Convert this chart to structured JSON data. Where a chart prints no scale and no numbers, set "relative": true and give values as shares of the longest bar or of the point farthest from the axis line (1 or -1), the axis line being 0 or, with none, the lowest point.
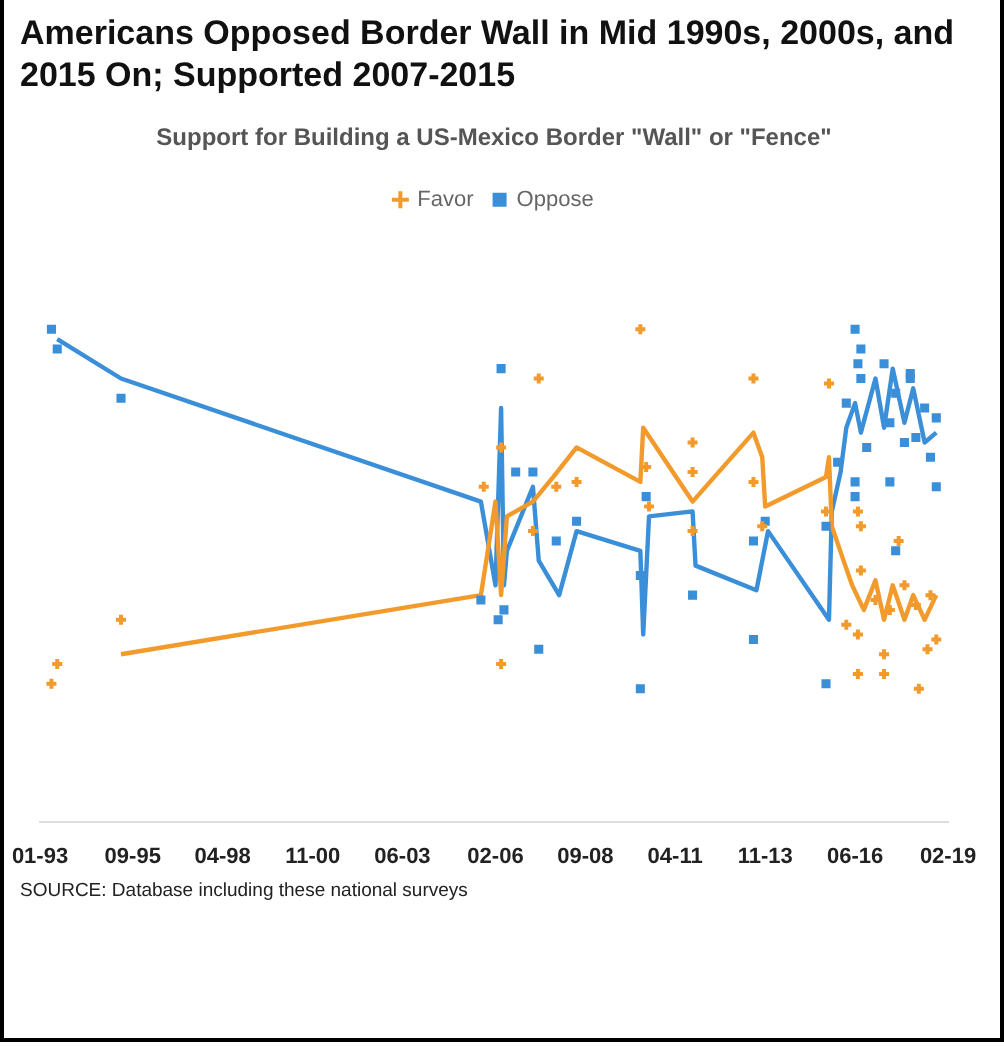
{
  "chart_data": {
    "type": "line",
    "title": "Americans Opposed Border Wall in Mid 1990s, 2000s, and 2015 On; Supported 2007-2015",
    "subtitle": "Support for Building a US-Mexico Border \"Wall\" or \"Fence\"",
    "relative": true,
    "legend": "top",
    "xlim": [
      "1993-01",
      "2019-02"
    ],
    "xticks": [
      {
        "value": "1993-01",
        "label": "01-93"
      },
      {
        "value": "1995-09",
        "label": "09-95"
      },
      {
        "value": "1998-04",
        "label": "04-98"
      },
      {
        "value": "2000-11",
        "label": "11-00"
      },
      {
        "value": "2003-06",
        "label": "06-03"
      },
      {
        "value": "2006-02",
        "label": "02-06"
      },
      {
        "value": "2008-09",
        "label": "09-08"
      },
      {
        "value": "2011-04",
        "label": "04-11"
      },
      {
        "value": "2013-11",
        "label": "11-13"
      },
      {
        "value": "2016-06",
        "label": "06-16"
      },
      {
        "value": "2019-02",
        "label": "02-19"
      }
    ],
    "annotations": [
      "SOURCE: Database including these national surveys"
    ],
    "series": [
      {
        "name": "Favor",
        "type": "scatter",
        "marker": "cross",
        "color": "#f29b2c",
        "x": [
          "1993-07",
          "1993-05",
          "1995-05",
          "2005-10",
          "2006-04",
          "2006-04",
          "2007-05",
          "2007-03",
          "2010-04",
          "2013-07",
          "2015-09",
          "2011-10",
          "2011-10",
          "2007-11",
          "2008-06",
          "2010-06",
          "2010-07",
          "2013-07",
          "2011-10",
          "2013-10",
          "2015-08",
          "2016-07",
          "2016-08",
          "2017-09",
          "2016-08",
          "2017-01",
          "2017-11",
          "2018-08",
          "2018-03",
          "2017-06",
          "2016-03",
          "2016-07",
          "2017-04",
          "2018-07",
          "2016-07",
          "2017-04",
          "2018-04",
          "2018-10"
        ],
        "values": [
          0.32,
          0.28,
          0.41,
          0.68,
          0.76,
          0.32,
          0.9,
          0.59,
          1.0,
          0.9,
          0.89,
          0.77,
          0.71,
          0.68,
          0.69,
          0.72,
          0.64,
          0.69,
          0.59,
          0.6,
          0.63,
          0.63,
          0.6,
          0.57,
          0.51,
          0.45,
          0.48,
          0.46,
          0.44,
          0.43,
          0.4,
          0.38,
          0.34,
          0.35,
          0.3,
          0.3,
          0.27,
          0.37
        ]
      },
      {
        "name": "Oppose",
        "type": "scatter",
        "marker": "square",
        "color": "#3a8fd8",
        "x": [
          "1993-05",
          "1993-07",
          "1995-05",
          "2006-04",
          "2006-09",
          "2007-03",
          "2005-09",
          "2006-05",
          "2006-03",
          "2007-05",
          "2007-11",
          "2008-06",
          "2010-06",
          "2010-04",
          "2011-10",
          "2013-07",
          "2013-11",
          "2015-08",
          "2013-07",
          "2010-04",
          "2015-08",
          "2015-12",
          "2016-06",
          "2016-08",
          "2016-07",
          "2018-01",
          "2018-10",
          "2018-10",
          "2017-06",
          "2016-06",
          "2016-06",
          "2017-08",
          "2016-03",
          "2016-08",
          "2017-04",
          "2017-08",
          "2018-01",
          "2018-06",
          "2018-08",
          "2016-10",
          "2017-06",
          "2017-11",
          "2018-03"
        ],
        "values": [
          1.0,
          0.96,
          0.86,
          0.92,
          0.71,
          0.71,
          0.45,
          0.43,
          0.41,
          0.35,
          0.57,
          0.61,
          0.66,
          0.5,
          0.46,
          0.57,
          0.61,
          0.6,
          0.37,
          0.27,
          0.28,
          0.73,
          1.0,
          0.96,
          0.93,
          0.9,
          0.82,
          0.68,
          0.69,
          0.69,
          0.66,
          0.55,
          0.85,
          0.9,
          0.93,
          0.87,
          0.91,
          0.84,
          0.74,
          0.76,
          0.81,
          0.77,
          0.78
        ]
      },
      {
        "type": "line",
        "color": "#f29b2c",
        "x": [
          "1995-05",
          "2005-09",
          "2006-02",
          "2006-04",
          "2006-06",
          "2007-03",
          "2007-10",
          "2008-06",
          "2010-04",
          "2010-05",
          "2011-10",
          "2013-07",
          "2013-10",
          "2013-11",
          "2015-08",
          "2015-09",
          "2015-10",
          "2016-02",
          "2016-05",
          "2016-09",
          "2017-01",
          "2017-04",
          "2017-07",
          "2017-11",
          "2018-02",
          "2018-06",
          "2018-10"
        ],
        "values": [
          0.34,
          0.46,
          0.65,
          0.46,
          0.62,
          0.65,
          0.7,
          0.76,
          0.69,
          0.8,
          0.65,
          0.79,
          0.74,
          0.64,
          0.7,
          0.74,
          0.6,
          0.53,
          0.48,
          0.43,
          0.49,
          0.41,
          0.48,
          0.41,
          0.46,
          0.41,
          0.46
        ]
      },
      {
        "type": "line",
        "color": "#3a8fd8",
        "x": [
          "1993-07",
          "1995-05",
          "2005-09",
          "2006-02",
          "2006-04",
          "2006-05",
          "2006-06",
          "2007-03",
          "2007-05",
          "2007-12",
          "2008-06",
          "2010-04",
          "2010-05",
          "2010-07",
          "2011-10",
          "2011-11",
          "2013-08",
          "2013-12",
          "2015-09",
          "2015-10",
          "2016-01",
          "2016-03",
          "2016-06",
          "2016-08",
          "2017-01",
          "2017-04",
          "2017-07",
          "2017-11",
          "2018-02",
          "2018-06",
          "2018-10"
        ],
        "values": [
          0.98,
          0.9,
          0.65,
          0.48,
          0.84,
          0.48,
          0.55,
          0.68,
          0.53,
          0.46,
          0.59,
          0.55,
          0.38,
          0.62,
          0.63,
          0.52,
          0.47,
          0.59,
          0.41,
          0.63,
          0.71,
          0.8,
          0.85,
          0.79,
          0.9,
          0.8,
          0.92,
          0.81,
          0.88,
          0.77,
          0.79
        ]
      }
    ]
  }
}
